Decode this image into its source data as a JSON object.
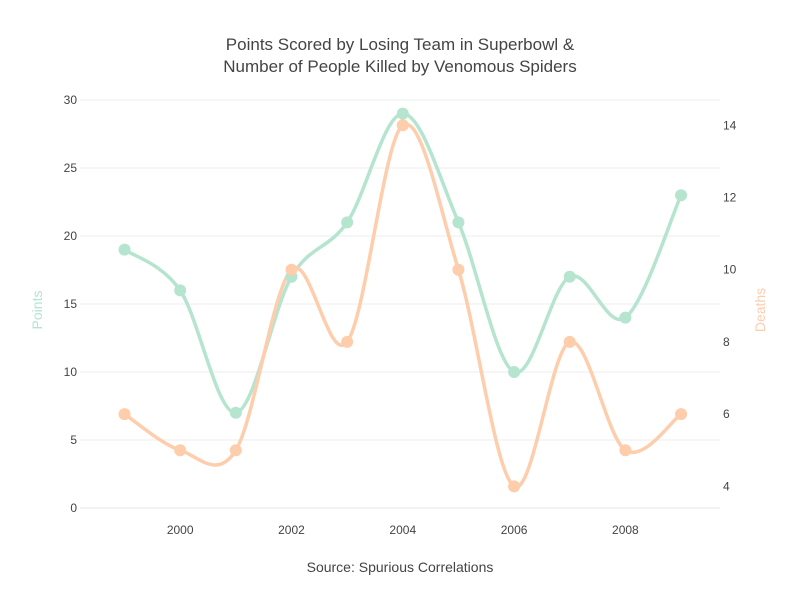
{
  "chart_data": {
    "type": "line",
    "title_line1": "Points Scored by Losing Team in Superbowl &",
    "title_line2": "Number of People Killed by Venomous Spiders",
    "xlabel": "Source: Spurious Correlations",
    "x": [
      1999,
      2000,
      2001,
      2002,
      2003,
      2004,
      2005,
      2006,
      2007,
      2008,
      2009
    ],
    "x_ticks": [
      2000,
      2002,
      2004,
      2006,
      2008
    ],
    "x_range": [
      1998.2,
      2009.7
    ],
    "grid": true,
    "series": [
      {
        "name": "Points",
        "axis": "y_left",
        "color": "#b5e4cf",
        "values": [
          19,
          16,
          7,
          17,
          21,
          29,
          21,
          10,
          17,
          14,
          23
        ]
      },
      {
        "name": "Deaths",
        "axis": "y_right",
        "color": "#fdcdac",
        "values": [
          6,
          5,
          5,
          10,
          8,
          14,
          10,
          4,
          8,
          5,
          6
        ]
      }
    ],
    "y_left": {
      "label": "Points",
      "range": [
        0,
        30
      ],
      "ticks": [
        0,
        5,
        10,
        15,
        20,
        25,
        30
      ],
      "color": "#b5e4cf"
    },
    "y_right": {
      "label": "Deaths",
      "range": [
        3.4,
        14.7
      ],
      "ticks": [
        4,
        6,
        8,
        10,
        12,
        14
      ],
      "color": "#fdcdac"
    }
  }
}
